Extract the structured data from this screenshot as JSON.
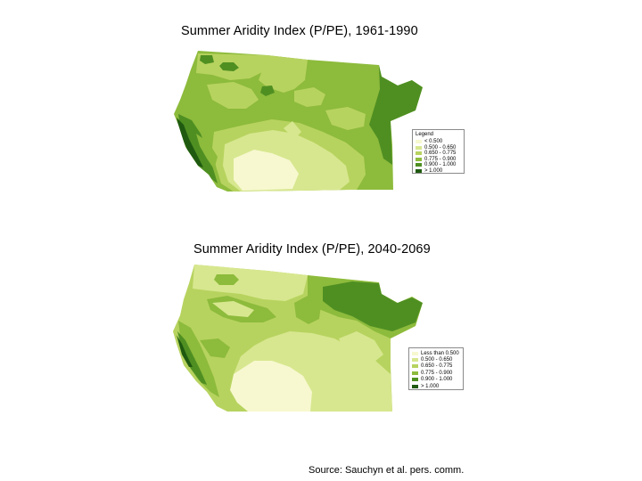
{
  "maps": [
    {
      "title": "Summer Aridity Index (P/PE), 1961-1990",
      "legend": {
        "title": "Legend",
        "entries": [
          {
            "label": "< 0.500",
            "color": "#f7f8cf"
          },
          {
            "label": "0.500 - 0.650",
            "color": "#d7e78f"
          },
          {
            "label": "0.650 - 0.775",
            "color": "#b7d35f"
          },
          {
            "label": "0.775 - 0.900",
            "color": "#8dbb3c"
          },
          {
            "label": "0.900 - 1.000",
            "color": "#4f8f22"
          },
          {
            "label": "> 1.000",
            "color": "#1f5a10"
          }
        ]
      }
    },
    {
      "title": "Summer Aridity Index (P/PE), 2040-2069",
      "legend": {
        "title": "",
        "entries": [
          {
            "label": "Less than 0.500",
            "color": "#f7f8cf"
          },
          {
            "label": "0.500 - 0.650",
            "color": "#d7e78f"
          },
          {
            "label": "0.650 - 0.775",
            "color": "#b7d35f"
          },
          {
            "label": "0.775 - 0.900",
            "color": "#8dbb3c"
          },
          {
            "label": "0.900 - 1.000",
            "color": "#4f8f22"
          },
          {
            "label": "> 1.000",
            "color": "#1f5a10"
          }
        ]
      }
    }
  ],
  "source": "Source: Sauchyn et al. pers. comm."
}
